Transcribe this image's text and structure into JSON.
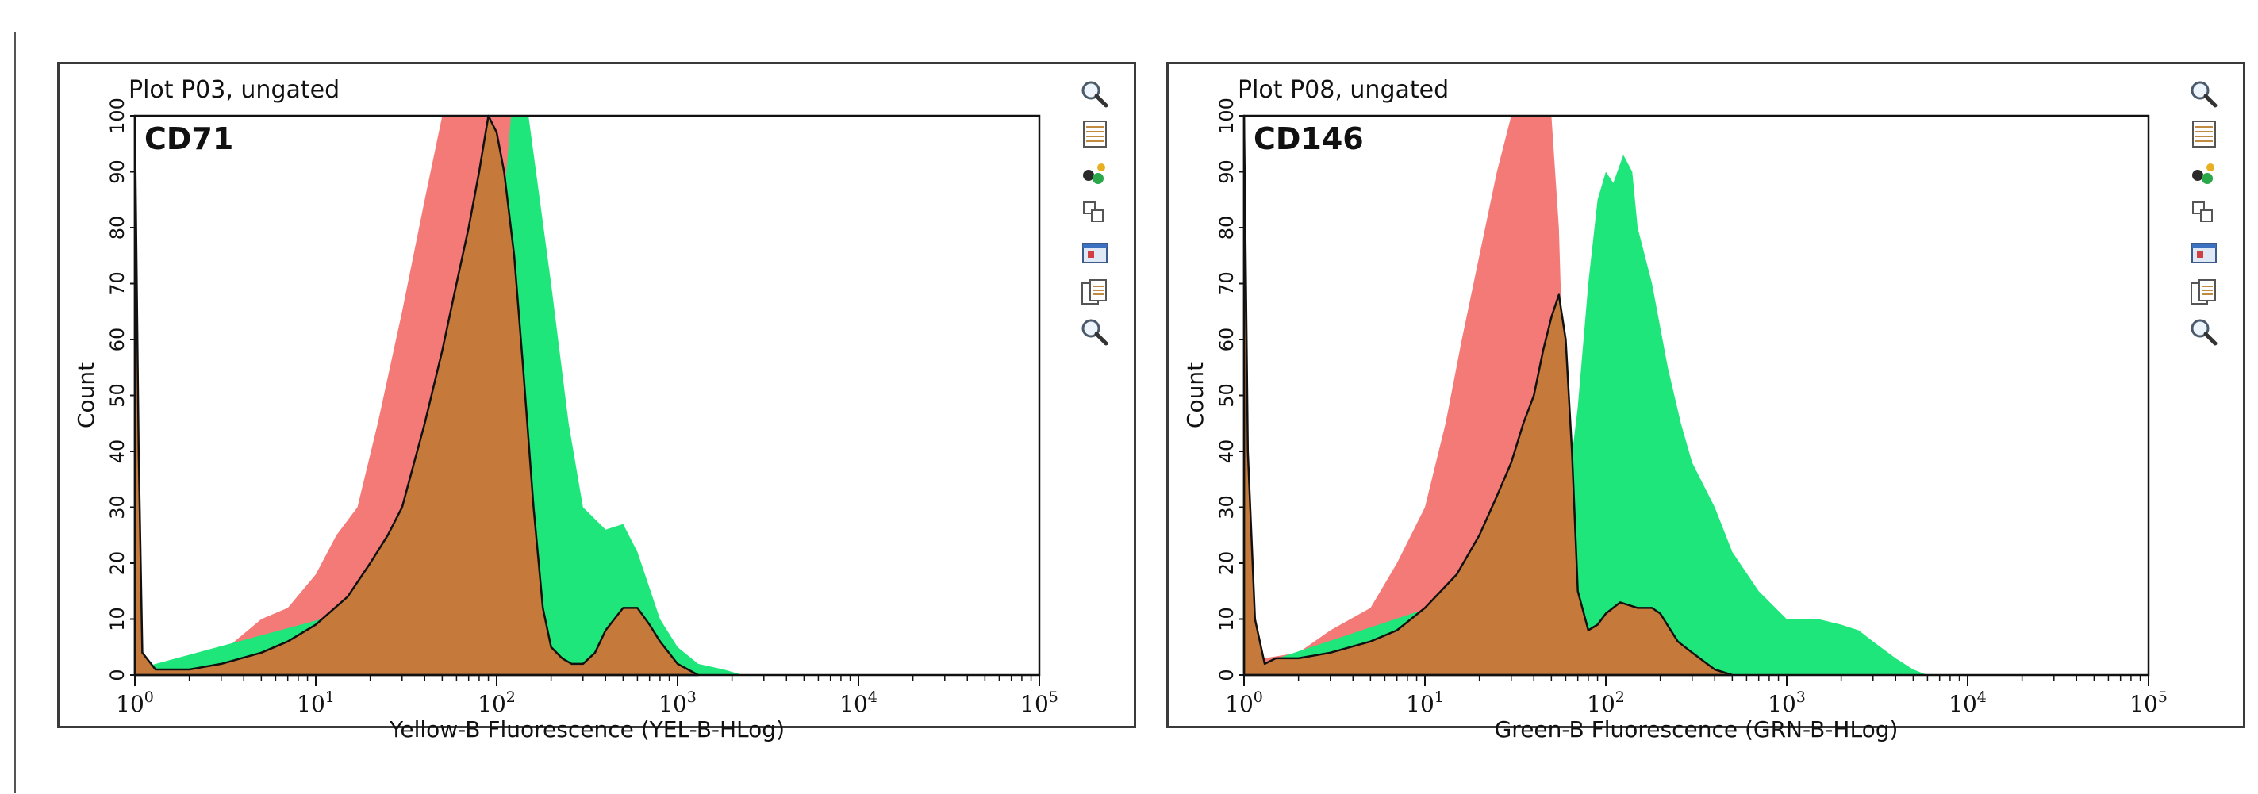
{
  "chart_data": [
    {
      "type": "area",
      "plot_title": "Plot P03, ungated",
      "marker_label": "CD71",
      "xlabel": "Yellow-B Fluorescence (YEL-B-HLog)",
      "ylabel": "Count",
      "x_scale": "log",
      "xlim": [
        1,
        100000
      ],
      "ylim": [
        0,
        100
      ],
      "y_ticks": [
        "0",
        "10",
        "20",
        "30",
        "40",
        "50",
        "60",
        "70",
        "80",
        "90",
        "100"
      ],
      "x_ticks": [
        {
          "base": "10",
          "exp": "0"
        },
        {
          "base": "10",
          "exp": "1"
        },
        {
          "base": "10",
          "exp": "2"
        },
        {
          "base": "10",
          "exp": "3"
        },
        {
          "base": "10",
          "exp": "4"
        },
        {
          "base": "10",
          "exp": "5"
        }
      ],
      "colors": {
        "red": "#f47a78",
        "green": "#1fe67a",
        "overlap": "#c57a3c",
        "outline": "#111111"
      },
      "series": [
        {
          "color_key": "red",
          "points": [
            [
              1,
              2
            ],
            [
              1.3,
              1
            ],
            [
              2,
              1
            ],
            [
              3,
              4
            ],
            [
              5,
              10
            ],
            [
              7,
              12
            ],
            [
              10,
              18
            ],
            [
              13,
              25
            ],
            [
              17,
              30
            ],
            [
              22,
              45
            ],
            [
              30,
              65
            ],
            [
              40,
              85
            ],
            [
              50,
              100
            ],
            [
              60,
              100
            ],
            [
              65,
              100
            ],
            [
              70,
              100
            ],
            [
              100,
              100
            ],
            [
              140,
              100
            ],
            [
              160,
              60
            ],
            [
              200,
              20
            ],
            [
              260,
              8
            ],
            [
              400,
              7
            ],
            [
              600,
              12
            ],
            [
              800,
              9
            ],
            [
              1000,
              3
            ],
            [
              1300,
              0
            ]
          ]
        },
        {
          "color_key": "green",
          "points": [
            [
              1,
              1
            ],
            [
              40,
              15
            ],
            [
              70,
              40
            ],
            [
              90,
              65
            ],
            [
              110,
              85
            ],
            [
              120,
              100
            ],
            [
              150,
              100
            ],
            [
              200,
              70
            ],
            [
              250,
              45
            ],
            [
              300,
              30
            ],
            [
              400,
              26
            ],
            [
              500,
              27
            ],
            [
              600,
              22
            ],
            [
              800,
              10
            ],
            [
              1000,
              5
            ],
            [
              1300,
              2
            ],
            [
              1800,
              1
            ],
            [
              2300,
              0
            ]
          ]
        },
        {
          "color_key": "overlap",
          "points": [
            [
              1,
              100
            ],
            [
              1.05,
              40
            ],
            [
              1.1,
              4
            ],
            [
              1.3,
              1
            ],
            [
              2,
              1
            ],
            [
              3,
              2
            ],
            [
              5,
              4
            ],
            [
              7,
              6
            ],
            [
              10,
              9
            ],
            [
              15,
              14
            ],
            [
              20,
              20
            ],
            [
              25,
              25
            ],
            [
              30,
              30
            ],
            [
              35,
              38
            ],
            [
              40,
              45
            ],
            [
              50,
              58
            ],
            [
              60,
              70
            ],
            [
              70,
              80
            ],
            [
              80,
              90
            ],
            [
              90,
              100
            ],
            [
              100,
              97
            ],
            [
              110,
              90
            ],
            [
              125,
              75
            ],
            [
              140,
              55
            ],
            [
              160,
              30
            ],
            [
              180,
              12
            ],
            [
              200,
              5
            ],
            [
              230,
              3
            ],
            [
              260,
              2
            ],
            [
              300,
              2
            ],
            [
              350,
              4
            ],
            [
              400,
              8
            ],
            [
              500,
              12
            ],
            [
              600,
              12
            ],
            [
              700,
              9
            ],
            [
              800,
              6
            ],
            [
              1000,
              2
            ],
            [
              1300,
              0
            ]
          ]
        }
      ]
    },
    {
      "type": "area",
      "plot_title": "Plot P08, ungated",
      "marker_label": "CD146",
      "xlabel": "Green-B Fluorescence (GRN-B-HLog)",
      "ylabel": "Count",
      "x_scale": "log",
      "xlim": [
        1,
        100000
      ],
      "ylim": [
        0,
        100
      ],
      "y_ticks": [
        "0",
        "10",
        "20",
        "30",
        "40",
        "50",
        "60",
        "70",
        "80",
        "90",
        "100"
      ],
      "x_ticks": [
        {
          "base": "10",
          "exp": "0"
        },
        {
          "base": "10",
          "exp": "1"
        },
        {
          "base": "10",
          "exp": "2"
        },
        {
          "base": "10",
          "exp": "3"
        },
        {
          "base": "10",
          "exp": "4"
        },
        {
          "base": "10",
          "exp": "5"
        }
      ],
      "colors": {
        "red": "#f47a78",
        "green": "#1fe67a",
        "overlap": "#c57a3c",
        "outline": "#111111"
      },
      "series": [
        {
          "color_key": "red",
          "points": [
            [
              1,
              2
            ],
            [
              1.3,
              3
            ],
            [
              2,
              4
            ],
            [
              3,
              8
            ],
            [
              5,
              12
            ],
            [
              7,
              20
            ],
            [
              10,
              30
            ],
            [
              13,
              45
            ],
            [
              16,
              60
            ],
            [
              20,
              75
            ],
            [
              25,
              90
            ],
            [
              30,
              100
            ],
            [
              40,
              100
            ],
            [
              50,
              100
            ],
            [
              55,
              80
            ],
            [
              60,
              40
            ],
            [
              70,
              15
            ],
            [
              80,
              10
            ],
            [
              100,
              7
            ],
            [
              200,
              10
            ],
            [
              300,
              6
            ],
            [
              400,
              2
            ],
            [
              500,
              0
            ]
          ]
        },
        {
          "color_key": "green",
          "points": [
            [
              1,
              1
            ],
            [
              20,
              15
            ],
            [
              50,
              20
            ],
            [
              60,
              30
            ],
            [
              70,
              48
            ],
            [
              80,
              70
            ],
            [
              90,
              85
            ],
            [
              100,
              90
            ],
            [
              110,
              88
            ],
            [
              125,
              93
            ],
            [
              140,
              90
            ],
            [
              150,
              80
            ],
            [
              180,
              70
            ],
            [
              220,
              55
            ],
            [
              260,
              45
            ],
            [
              300,
              38
            ],
            [
              400,
              30
            ],
            [
              500,
              22
            ],
            [
              700,
              15
            ],
            [
              1000,
              10
            ],
            [
              1500,
              10
            ],
            [
              2000,
              9
            ],
            [
              2500,
              8
            ],
            [
              3000,
              6
            ],
            [
              4000,
              3
            ],
            [
              5000,
              1
            ],
            [
              6000,
              0
            ]
          ]
        },
        {
          "color_key": "overlap",
          "points": [
            [
              1,
              100
            ],
            [
              1.05,
              40
            ],
            [
              1.15,
              10
            ],
            [
              1.3,
              2
            ],
            [
              1.5,
              3
            ],
            [
              2,
              3
            ],
            [
              3,
              4
            ],
            [
              5,
              6
            ],
            [
              7,
              8
            ],
            [
              10,
              12
            ],
            [
              15,
              18
            ],
            [
              20,
              25
            ],
            [
              25,
              32
            ],
            [
              30,
              38
            ],
            [
              35,
              45
            ],
            [
              40,
              50
            ],
            [
              45,
              58
            ],
            [
              50,
              64
            ],
            [
              55,
              68
            ],
            [
              60,
              60
            ],
            [
              65,
              40
            ],
            [
              70,
              15
            ],
            [
              80,
              8
            ],
            [
              90,
              9
            ],
            [
              100,
              11
            ],
            [
              120,
              13
            ],
            [
              150,
              12
            ],
            [
              180,
              12
            ],
            [
              200,
              11
            ],
            [
              250,
              6
            ],
            [
              300,
              4
            ],
            [
              400,
              1
            ],
            [
              500,
              0
            ]
          ]
        }
      ]
    }
  ],
  "toolbar_icons": [
    "zoom-out-icon",
    "table-icon",
    "gate-color-icon",
    "overlay-icon",
    "export-icon",
    "copy-icon",
    "zoom-in-icon"
  ]
}
